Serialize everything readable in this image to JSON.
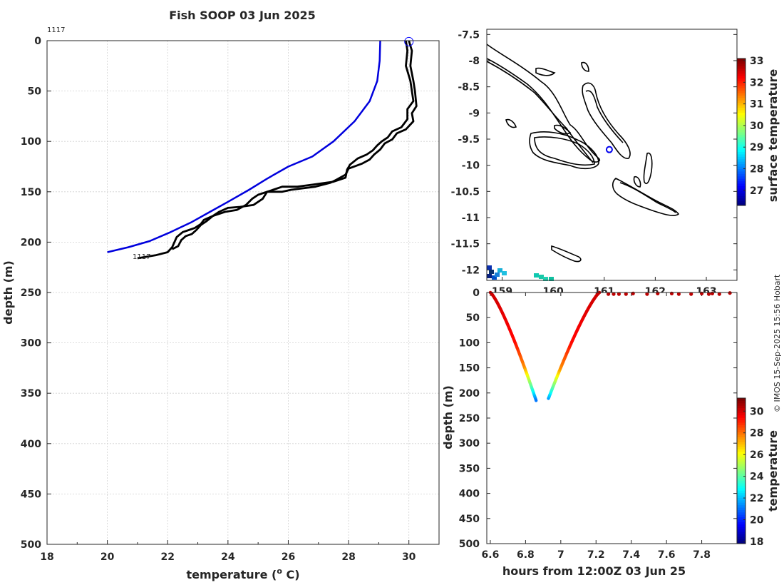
{
  "title": "Fish SOOP 03 Jun 2025",
  "credit": "© IMOS 15-Sep-2025 15:56 Hobart",
  "chart_data": [
    {
      "type": "line",
      "name": "temperature-depth-profile",
      "profile_id": "1117",
      "xlabel": "temperature (",
      "xlabel_sup": "o",
      "xlabel_unit": " C)",
      "ylabel": "depth (m)",
      "xlim": [
        18,
        31
      ],
      "ylim": [
        0,
        500
      ],
      "xticks": [
        "18",
        "20",
        "22",
        "24",
        "26",
        "28",
        "30"
      ],
      "yticks": [
        "0",
        "50",
        "100",
        "150",
        "200",
        "250",
        "300",
        "350",
        "400",
        "450",
        "500"
      ],
      "grid": true,
      "series": [
        {
          "name": "climatology",
          "color": "#0000dd",
          "points": [
            [
              29.05,
              0
            ],
            [
              29.03,
              20
            ],
            [
              28.95,
              40
            ],
            [
              28.7,
              60
            ],
            [
              28.2,
              80
            ],
            [
              27.5,
              100
            ],
            [
              26.8,
              115
            ],
            [
              26.0,
              125
            ],
            [
              25.3,
              137
            ],
            [
              24.7,
              148
            ],
            [
              24.0,
              160
            ],
            [
              23.4,
              170
            ],
            [
              22.8,
              180
            ],
            [
              22.1,
              190
            ],
            [
              21.4,
              199
            ],
            [
              20.7,
              205
            ],
            [
              20.0,
              210
            ]
          ]
        },
        {
          "name": "profile-upper",
          "color": "#000000",
          "points": [
            [
              30.0,
              0
            ],
            [
              30.1,
              10
            ],
            [
              30.05,
              25
            ],
            [
              30.15,
              40
            ],
            [
              30.2,
              50
            ],
            [
              30.25,
              65
            ],
            [
              30.1,
              72
            ],
            [
              30.15,
              80
            ],
            [
              29.9,
              88
            ],
            [
              29.6,
              92
            ],
            [
              29.45,
              98
            ],
            [
              29.2,
              102
            ],
            [
              29.05,
              108
            ],
            [
              28.85,
              113
            ],
            [
              28.7,
              118
            ],
            [
              28.45,
              122
            ],
            [
              28.0,
              127
            ],
            [
              27.9,
              133
            ],
            [
              27.6,
              138
            ],
            [
              27.4,
              141
            ],
            [
              26.9,
              145
            ],
            [
              26.1,
              148
            ],
            [
              25.8,
              150
            ],
            [
              25.3,
              150
            ],
            [
              25.0,
              153
            ],
            [
              24.8,
              157
            ],
            [
              24.6,
              163
            ],
            [
              24.3,
              168
            ],
            [
              23.9,
              170
            ],
            [
              23.5,
              174
            ],
            [
              23.3,
              179
            ],
            [
              23.1,
              183
            ],
            [
              22.95,
              188
            ],
            [
              22.8,
              192
            ],
            [
              22.6,
              194
            ],
            [
              22.45,
              198
            ],
            [
              22.35,
              204
            ],
            [
              22.15,
              207
            ]
          ]
        },
        {
          "name": "profile-lower",
          "color": "#000000",
          "points": [
            [
              29.9,
              0
            ],
            [
              29.95,
              10
            ],
            [
              29.9,
              25
            ],
            [
              30.05,
              40
            ],
            [
              30.1,
              50
            ],
            [
              30.15,
              60
            ],
            [
              29.95,
              68
            ],
            [
              29.95,
              78
            ],
            [
              29.75,
              86
            ],
            [
              29.45,
              90
            ],
            [
              29.3,
              96
            ],
            [
              29.1,
              100
            ],
            [
              28.95,
              104
            ],
            [
              28.8,
              109
            ],
            [
              28.6,
              113
            ],
            [
              28.3,
              117
            ],
            [
              28.05,
              123
            ],
            [
              27.95,
              128
            ],
            [
              27.9,
              136
            ],
            [
              27.5,
              140
            ],
            [
              26.8,
              143
            ],
            [
              26.3,
              145
            ],
            [
              25.8,
              145
            ],
            [
              25.5,
              148
            ],
            [
              25.3,
              150
            ],
            [
              25.15,
              157
            ],
            [
              24.85,
              163
            ],
            [
              24.4,
              165
            ],
            [
              24.0,
              166
            ],
            [
              23.7,
              170
            ],
            [
              23.5,
              174
            ],
            [
              23.2,
              178
            ],
            [
              23.1,
              182
            ],
            [
              22.9,
              186
            ],
            [
              22.7,
              188
            ],
            [
              22.5,
              190
            ],
            [
              22.3,
              195
            ],
            [
              22.15,
              205
            ],
            [
              22.0,
              210
            ],
            [
              21.6,
              213
            ],
            [
              21.0,
              216
            ]
          ]
        }
      ],
      "marker": {
        "label": "surface-position",
        "x": 30.0,
        "y": 1
      },
      "annotations": [
        "1117",
        "1117"
      ]
    },
    {
      "type": "heatmap",
      "name": "location-map",
      "xlim": [
        158.7,
        163.6
      ],
      "ylim": [
        -12.2,
        -7.4
      ],
      "xticks": [
        "159",
        "160",
        "161",
        "162",
        "163"
      ],
      "yticks": [
        "-7.5",
        "-8",
        "-8.5",
        "-9",
        "-9.5",
        "-10",
        "-10.5",
        "-11",
        "-11.5",
        "-12"
      ],
      "position_marker": {
        "lon": 161.1,
        "lat": -9.7
      },
      "colorbar": {
        "label": "surface temperature",
        "ticks": [
          "27",
          "28",
          "29",
          "30",
          "31",
          "32",
          "33"
        ],
        "range": [
          26.3,
          33.1
        ]
      }
    },
    {
      "type": "scatter",
      "name": "depth-time-section",
      "xlabel": "hours from 12:00Z 03 Jun 25",
      "ylabel": "depth (m)",
      "xlim": [
        6.58,
        8.0
      ],
      "ylim": [
        0,
        500
      ],
      "xticks": [
        "6.6",
        "6.8",
        "7",
        "7.2",
        "7.4",
        "7.6",
        "7.8"
      ],
      "yticks": [
        "0",
        "50",
        "100",
        "150",
        "200",
        "250",
        "300",
        "350",
        "400",
        "450",
        "500"
      ],
      "descent": {
        "t_start": 6.6,
        "t_end": 6.86,
        "d_max": 215
      },
      "ascent": {
        "t_start": 6.93,
        "t_end": 7.22,
        "d_max": 211
      },
      "surface_points": [
        [
          7.27,
          3
        ],
        [
          7.3,
          3
        ],
        [
          7.33,
          3
        ],
        [
          7.37,
          3
        ],
        [
          7.41,
          2
        ],
        [
          7.49,
          3
        ],
        [
          7.55,
          2
        ],
        [
          7.63,
          2
        ],
        [
          7.67,
          3
        ],
        [
          7.74,
          3
        ],
        [
          7.8,
          2
        ],
        [
          7.84,
          3
        ],
        [
          7.86,
          2
        ],
        [
          7.9,
          3
        ],
        [
          7.96,
          1
        ]
      ],
      "colorbar": {
        "label": "temperature",
        "ticks": [
          "18",
          "20",
          "22",
          "24",
          "26",
          "28",
          "30"
        ],
        "range": [
          17.8,
          31.2
        ]
      }
    }
  ]
}
